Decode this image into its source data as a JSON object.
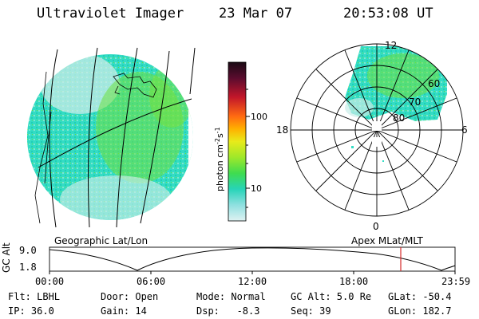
{
  "header": {
    "title": "Ultraviolet Imager",
    "date": "23 Mar 07",
    "time": "20:53:08 UT"
  },
  "colorbar": {
    "unit_main": "photon cm",
    "unit_sup1": "-2",
    "unit_mid": "s",
    "unit_sup2": "-1",
    "ticks": [
      "100",
      "10"
    ]
  },
  "polar": {
    "hour_labels": {
      "top": "12",
      "left": "18",
      "right": "6",
      "bottom": "0"
    },
    "lat_labels": [
      "60",
      "70",
      "80"
    ],
    "caption": "Apex MLat/MLT"
  },
  "geo": {
    "caption": "Geographic Lat/Lon"
  },
  "altitude_plot": {
    "ylabel": "GC Alt",
    "y_ticks": [
      "9.0",
      "1.8"
    ],
    "x_ticks": [
      "00:00",
      "06:00",
      "12:00",
      "18:00",
      "23:59"
    ]
  },
  "info": {
    "row1": {
      "filter": "Flt: LBHL",
      "door": "Door: Open",
      "mode": "Mode: Normal",
      "gc_alt": "GC Alt: 5.0 Re",
      "glat": "GLat: -50.4"
    },
    "row2": {
      "ip": "IP: 36.0",
      "gain": "Gain: 14",
      "dsp": "Dsp:   -8.3",
      "seq": "Seq: 39",
      "glon": "GLon: 182.7"
    }
  },
  "colors": {
    "image_cyan": "#33dcc4",
    "image_green": "#66e23a",
    "image_light": "#bfe6e3",
    "marker_red": "#d52a2a"
  }
}
